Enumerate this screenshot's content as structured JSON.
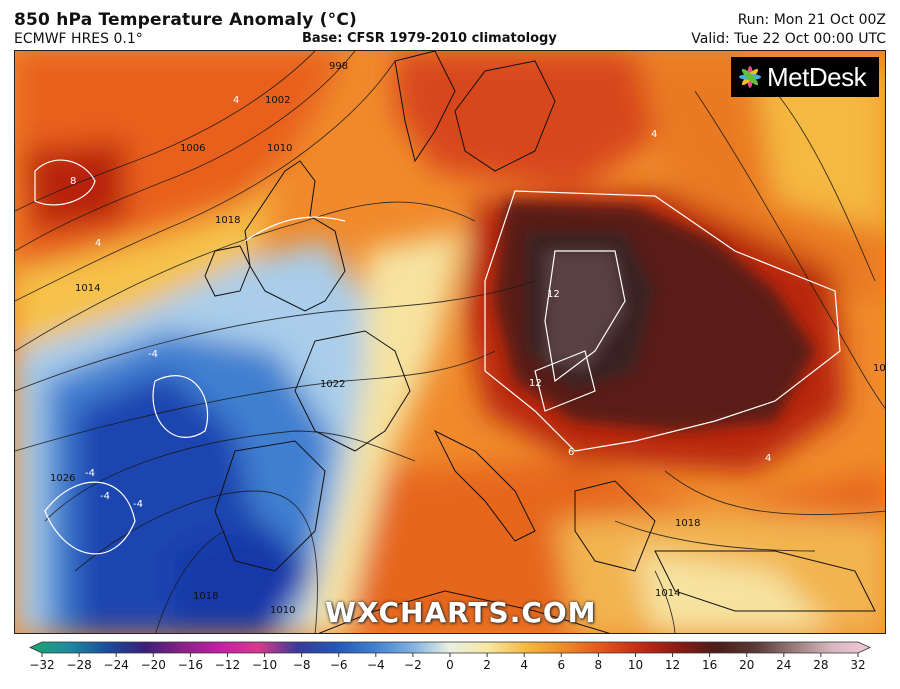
{
  "header": {
    "title": "850 hPa Temperature Anomaly (°C)",
    "model": "ECMWF HRES 0.1°",
    "base": "Base: CFSR 1979-2010 climatology",
    "run": "Run: Mon 21 Oct 00Z",
    "valid": "Valid: Tue 22 Oct 00:00 UTC"
  },
  "logo": {
    "text": "MetDesk",
    "icon": "metdesk-star-icon"
  },
  "watermark": "WXCHARTS.COM",
  "map": {
    "isobar_labels": [
      "998",
      "1002",
      "1006",
      "1010",
      "1014",
      "1018",
      "1022",
      "1026",
      "1026",
      "1018",
      "1014",
      "1018",
      "1010"
    ],
    "anomaly_labels": [
      "8",
      "4",
      "4",
      "12",
      "12",
      "-4",
      "-4",
      "-4",
      "-4",
      "4",
      "4",
      "6"
    ],
    "colors": {
      "cold_deep": "#1838a8",
      "cold": "#3f7fd0",
      "cool": "#a9cdea",
      "neutral": "#f6f2d6",
      "warm_light": "#f5b840",
      "warm": "#ea6a1a",
      "hot": "#bf2a10",
      "very_hot": "#7a1a10",
      "extreme": "#3a2220"
    }
  },
  "colorbar": {
    "ticks": [
      "−32",
      "−28",
      "−24",
      "−20",
      "−16",
      "−12",
      "−10",
      "−8",
      "−6",
      "−4",
      "−2",
      "0",
      "2",
      "4",
      "6",
      "8",
      "10",
      "12",
      "16",
      "20",
      "24",
      "28",
      "32"
    ],
    "colors": [
      "#1aa86b",
      "#1f8aa0",
      "#1a4e9c",
      "#3a1f7a",
      "#8a1f86",
      "#c41fa8",
      "#d63a8a",
      "#3a3a9a",
      "#2356b8",
      "#3f7fd0",
      "#7fb0e0",
      "#eaf0e4",
      "#f6e8a0",
      "#f5b840",
      "#ec8a28",
      "#e0561a",
      "#c02a14",
      "#8a1a14",
      "#4a1e1a",
      "#5a3a38",
      "#9a7a78",
      "#d8b8c0",
      "#f0c8d8"
    ]
  }
}
